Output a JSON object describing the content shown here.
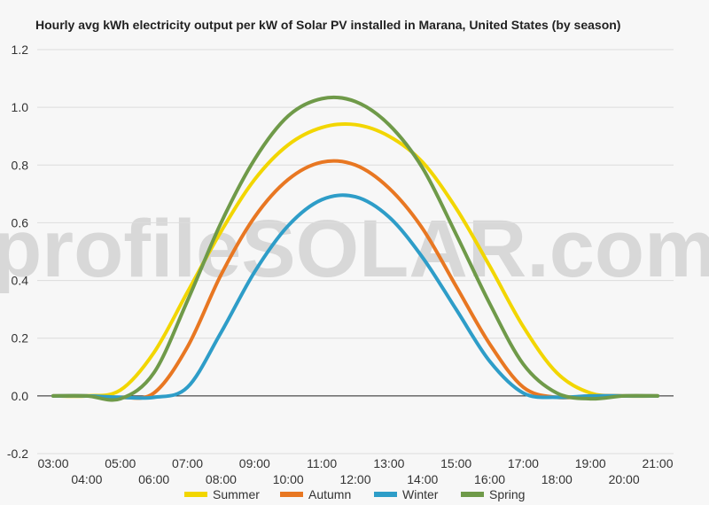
{
  "chart_data": {
    "type": "line",
    "title": "Hourly avg kWh electricity output per kW of Solar PV installed in Marana, United States (by season)",
    "watermark": "profileSOLAR.com",
    "ylim": [
      -0.2,
      1.2
    ],
    "yticks": [
      "-0.2",
      "0.0",
      "0.2",
      "0.4",
      "0.6",
      "0.8",
      "1.0",
      "1.2"
    ],
    "xticks": [
      "03:00",
      "04:00",
      "05:00",
      "06:00",
      "07:00",
      "08:00",
      "09:00",
      "10:00",
      "11:00",
      "12:00",
      "13:00",
      "14:00",
      "15:00",
      "16:00",
      "17:00",
      "18:00",
      "19:00",
      "20:00",
      "21:00"
    ],
    "grid": true,
    "legend_position": "bottom",
    "x": [
      "03:00",
      "04:00",
      "05:00",
      "06:00",
      "07:00",
      "08:00",
      "09:00",
      "10:00",
      "11:00",
      "12:00",
      "13:00",
      "14:00",
      "15:00",
      "16:00",
      "17:00",
      "18:00",
      "19:00",
      "20:00",
      "21:00"
    ],
    "series": [
      {
        "name": "Summer",
        "color": "#f2d600",
        "values": [
          0,
          0,
          0.02,
          0.15,
          0.36,
          0.57,
          0.75,
          0.87,
          0.93,
          0.94,
          0.9,
          0.81,
          0.65,
          0.45,
          0.24,
          0.08,
          0.01,
          0,
          0
        ]
      },
      {
        "name": "Autumn",
        "color": "#e87722",
        "values": [
          0,
          0,
          -0.005,
          0.01,
          0.17,
          0.42,
          0.62,
          0.75,
          0.81,
          0.8,
          0.72,
          0.58,
          0.38,
          0.18,
          0.03,
          -0.005,
          0,
          0,
          0
        ]
      },
      {
        "name": "Winter",
        "color": "#2e9dc8",
        "values": [
          0,
          0,
          -0.005,
          -0.005,
          0.03,
          0.22,
          0.43,
          0.59,
          0.68,
          0.69,
          0.62,
          0.48,
          0.3,
          0.12,
          0.01,
          -0.005,
          0,
          0,
          0
        ]
      },
      {
        "name": "Spring",
        "color": "#6f9a49",
        "values": [
          0,
          0,
          -0.01,
          0.08,
          0.33,
          0.6,
          0.82,
          0.97,
          1.03,
          1.02,
          0.94,
          0.79,
          0.56,
          0.32,
          0.11,
          0.01,
          -0.01,
          0,
          0
        ]
      }
    ]
  }
}
